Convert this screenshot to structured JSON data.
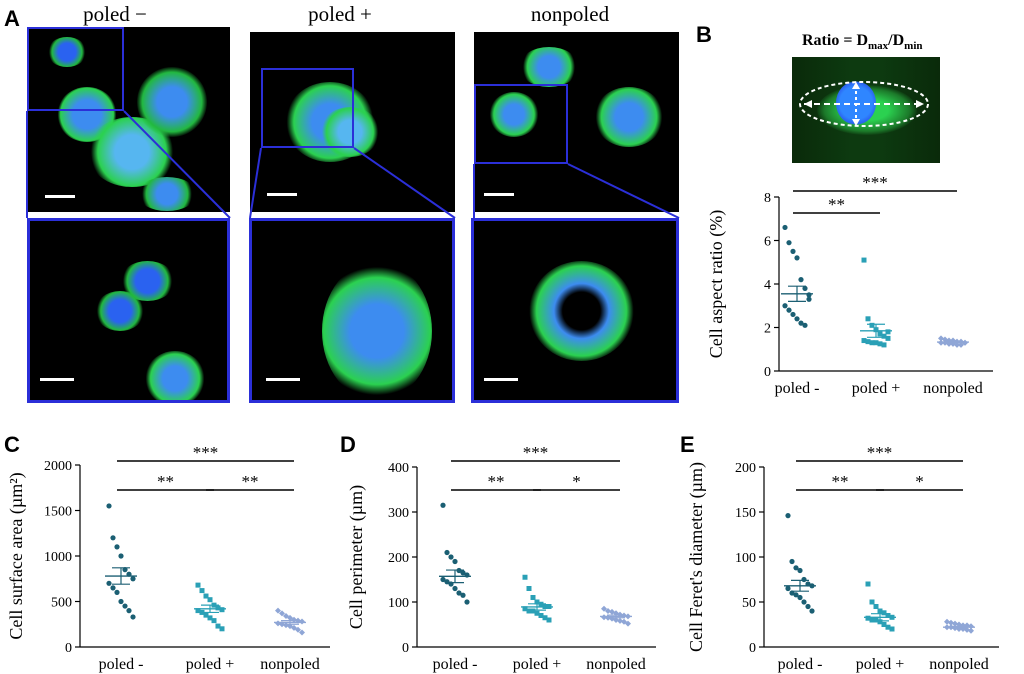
{
  "panels": {
    "A": "A",
    "B": "B",
    "C": "C",
    "D": "D",
    "E": "E"
  },
  "panel_a": {
    "col_titles": [
      "poled −",
      "poled +",
      "nonpoled"
    ]
  },
  "panel_b_schematic": {
    "ratio_prefix": "Ratio = D",
    "sub_max": "max",
    "slash_d": "/D",
    "sub_min": "min"
  },
  "colors": {
    "poled_minus": "#1b5f73",
    "poled_plus": "#2aa0b6",
    "nonpoled": "#8fa6d6",
    "outline": "#2b2fd8",
    "actin": "#3fd24a",
    "nucleus": "#2a62f0"
  },
  "chart_data": [
    {
      "type": "scatter",
      "panel": "B",
      "categories": [
        "poled -",
        "poled +",
        "nonpoled"
      ],
      "ylabel": "Cell aspect ratio (%)",
      "ylim": [
        0,
        8
      ],
      "yticks": [
        "0",
        "2",
        "4",
        "6",
        "8"
      ],
      "series": [
        {
          "values": [
            6.6,
            5.9,
            5.5,
            5.2,
            4.2,
            3.8,
            3.5,
            3.0,
            2.8,
            2.6,
            2.4,
            2.2,
            2.1,
            3.3
          ]
        },
        {
          "values": [
            5.1,
            2.4,
            2.1,
            1.9,
            1.7,
            1.6,
            1.5,
            1.4,
            1.35,
            1.3,
            1.3,
            1.25,
            1.2,
            1.8
          ]
        },
        {
          "values": [
            1.5,
            1.45,
            1.4,
            1.4,
            1.35,
            1.35,
            1.3,
            1.3,
            1.3,
            1.25,
            1.25,
            1.2,
            1.2,
            1.3
          ]
        }
      ],
      "means": [
        3.55,
        1.85,
        1.33
      ],
      "errors": [
        0.35,
        0.3,
        0.03
      ],
      "significance": [
        {
          "from": 0,
          "to": 1,
          "label": "**"
        },
        {
          "from": 0,
          "to": 2,
          "label": "***"
        }
      ]
    },
    {
      "type": "scatter",
      "panel": "C",
      "categories": [
        "poled -",
        "poled +",
        "nonpoled"
      ],
      "ylabel": "Cell surface area (µm²)",
      "ylim": [
        0,
        2000
      ],
      "yticks": [
        "0",
        "500",
        "1000",
        "1500",
        "2000"
      ],
      "series": [
        {
          "values": [
            1550,
            1200,
            1100,
            1000,
            850,
            800,
            750,
            700,
            650,
            600,
            500,
            450,
            400,
            330
          ]
        },
        {
          "values": [
            680,
            620,
            560,
            520,
            460,
            430,
            410,
            400,
            380,
            350,
            320,
            290,
            230,
            200
          ]
        },
        {
          "values": [
            400,
            370,
            340,
            320,
            300,
            290,
            280,
            260,
            250,
            240,
            230,
            210,
            190,
            160
          ]
        }
      ],
      "means": [
        780,
        420,
        270
      ],
      "errors": [
        90,
        40,
        20
      ],
      "significance": [
        {
          "from": 0,
          "to": 1,
          "label": "**"
        },
        {
          "from": 1,
          "to": 2,
          "label": "**"
        },
        {
          "from": 0,
          "to": 2,
          "label": "***"
        }
      ]
    },
    {
      "type": "scatter",
      "panel": "D",
      "categories": [
        "poled -",
        "poled +",
        "nonpoled"
      ],
      "ylabel": "Cell perimeter (µm)",
      "ylim": [
        0,
        400
      ],
      "yticks": [
        "0",
        "100",
        "200",
        "300",
        "400"
      ],
      "series": [
        {
          "values": [
            315,
            210,
            200,
            190,
            170,
            165,
            160,
            150,
            145,
            140,
            130,
            120,
            115,
            100
          ]
        },
        {
          "values": [
            155,
            130,
            110,
            100,
            95,
            90,
            90,
            85,
            80,
            80,
            75,
            70,
            65,
            60
          ]
        },
        {
          "values": [
            85,
            80,
            78,
            75,
            72,
            70,
            68,
            66,
            65,
            63,
            60,
            58,
            56,
            52
          ]
        }
      ],
      "means": [
        157,
        89,
        68
      ],
      "errors": [
        14,
        7,
        3
      ],
      "significance": [
        {
          "from": 0,
          "to": 1,
          "label": "**"
        },
        {
          "from": 1,
          "to": 2,
          "label": "*"
        },
        {
          "from": 0,
          "to": 2,
          "label": "***"
        }
      ]
    },
    {
      "type": "scatter",
      "panel": "E",
      "categories": [
        "poled -",
        "poled +",
        "nonpoled"
      ],
      "ylabel": "Cell Feret's diameter (µm)",
      "ylim": [
        0,
        200
      ],
      "yticks": [
        "0",
        "50",
        "100",
        "150",
        "200"
      ],
      "series": [
        {
          "values": [
            146,
            95,
            88,
            85,
            75,
            70,
            68,
            65,
            60,
            58,
            55,
            50,
            45,
            40
          ]
        },
        {
          "values": [
            70,
            50,
            45,
            40,
            38,
            35,
            33,
            32,
            30,
            30,
            28,
            25,
            22,
            20
          ]
        },
        {
          "values": [
            28,
            27,
            26,
            25,
            24,
            24,
            23,
            22,
            22,
            21,
            20,
            20,
            19,
            18
          ]
        }
      ],
      "means": [
        68,
        33,
        22
      ],
      "errors": [
        6,
        4,
        1
      ],
      "significance": [
        {
          "from": 0,
          "to": 1,
          "label": "**"
        },
        {
          "from": 1,
          "to": 2,
          "label": "*"
        },
        {
          "from": 0,
          "to": 2,
          "label": "***"
        }
      ]
    }
  ]
}
